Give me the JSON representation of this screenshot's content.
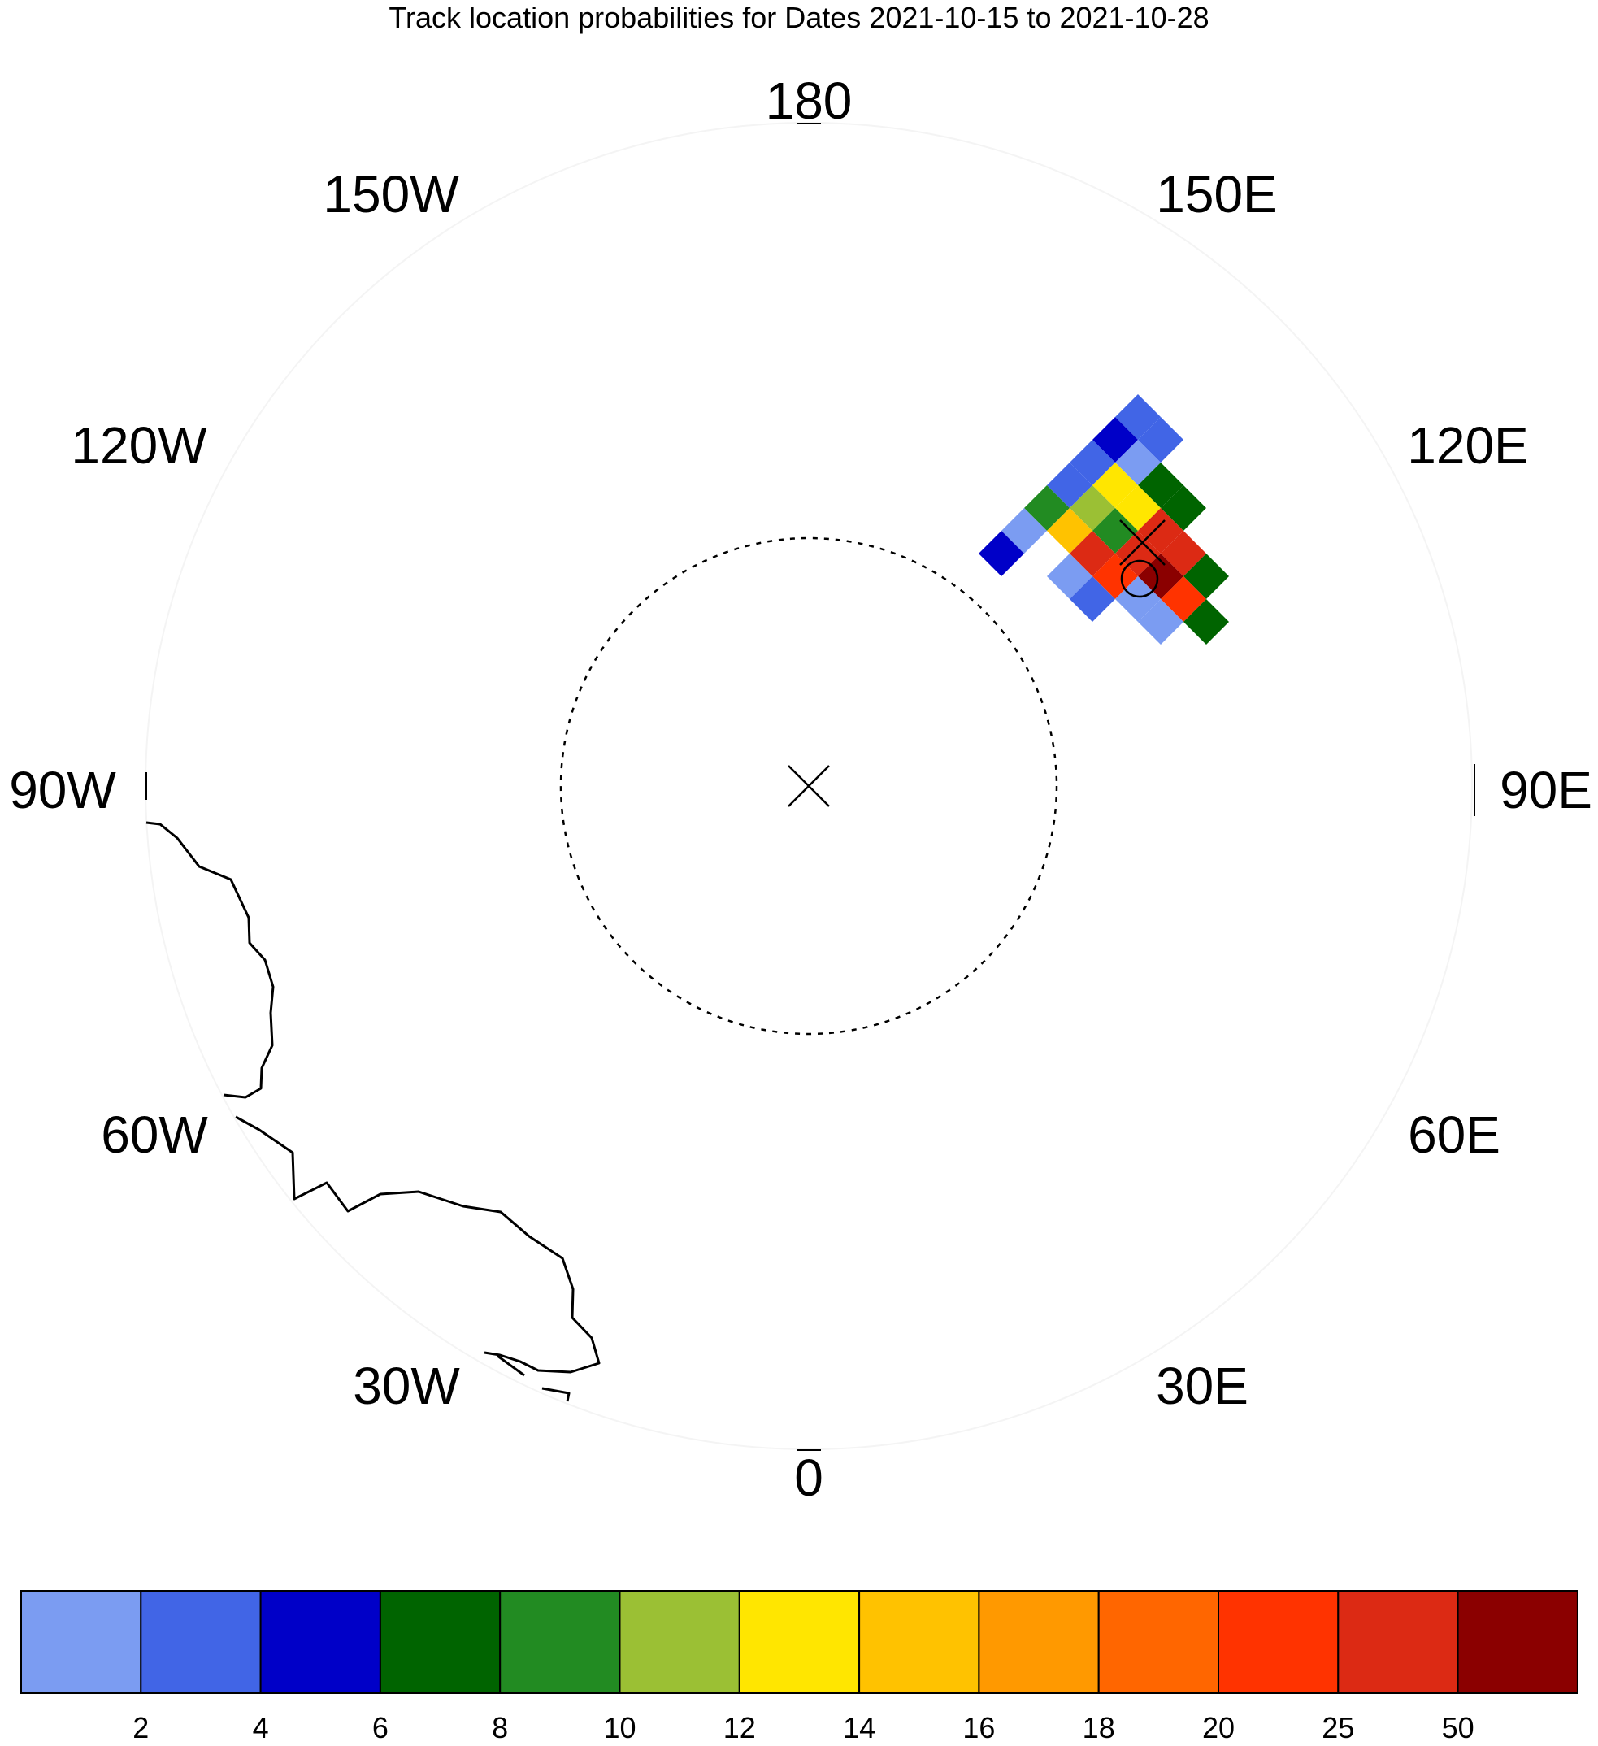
{
  "title": "Track location probabilities for Dates 2021-10-15 to 2021-10-28",
  "longitude_labels": [
    "180",
    "150E",
    "120E",
    "90E",
    "60E",
    "30E",
    "0",
    "30W",
    "60W",
    "90W",
    "120W",
    "150W"
  ],
  "pole_marker": "x-mark-icon",
  "storm_markers": [
    "x-mark-icon",
    "circle-icon"
  ],
  "colorbar": {
    "colors": [
      "#7b9cf2",
      "#4165e6",
      "#0000c8",
      "#006400",
      "#228b22",
      "#9bc034",
      "#ffe600",
      "#ffc200",
      "#ff9900",
      "#ff6600",
      "#ff3300",
      "#dc2a14",
      "#8b0000"
    ],
    "labels": [
      "2",
      "4",
      "6",
      "8",
      "10",
      "12",
      "14",
      "16",
      "18",
      "20",
      "25",
      "50"
    ]
  },
  "probability_cells": [
    {
      "gx": 0,
      "gy": 0,
      "color": "#4165e6"
    },
    {
      "gx": 1,
      "gy": 0,
      "color": "#4165e6"
    },
    {
      "gx": 0,
      "gy": 1,
      "color": "#0000c8"
    },
    {
      "gx": 1,
      "gy": 1,
      "color": "#7b9cf2"
    },
    {
      "gx": 2,
      "gy": 1,
      "color": "#006400"
    },
    {
      "gx": 3,
      "gy": 1,
      "color": "#006400"
    },
    {
      "gx": 0,
      "gy": 2,
      "color": "#4165e6"
    },
    {
      "gx": 1,
      "gy": 2,
      "color": "#ffe600"
    },
    {
      "gx": 2,
      "gy": 2,
      "color": "#ffe600"
    },
    {
      "gx": 3,
      "gy": 2,
      "color": "#dc2a14"
    },
    {
      "gx": 4,
      "gy": 2,
      "color": "#dc2a14"
    },
    {
      "gx": 5,
      "gy": 2,
      "color": "#006400"
    },
    {
      "gx": 0,
      "gy": 3,
      "color": "#4165e6"
    },
    {
      "gx": 1,
      "gy": 3,
      "color": "#9bc034"
    },
    {
      "gx": 2,
      "gy": 3,
      "color": "#228b22"
    },
    {
      "gx": 3,
      "gy": 3,
      "color": "#dc2a14"
    },
    {
      "gx": 4,
      "gy": 3,
      "color": "#8b0000"
    },
    {
      "gx": 5,
      "gy": 3,
      "color": "#ff3300"
    },
    {
      "gx": 6,
      "gy": 3,
      "color": "#006400"
    },
    {
      "gx": 0,
      "gy": 4,
      "color": "#228b22"
    },
    {
      "gx": 1,
      "gy": 4,
      "color": "#ffc200"
    },
    {
      "gx": 2,
      "gy": 4,
      "color": "#dc2a14"
    },
    {
      "gx": 3,
      "gy": 4,
      "color": "#ff3300"
    },
    {
      "gx": 4,
      "gy": 4,
      "color": "#7b9cf2"
    },
    {
      "gx": 5,
      "gy": 4,
      "color": "#7b9cf2"
    },
    {
      "gx": 0,
      "gy": 5,
      "color": "#7b9cf2"
    },
    {
      "gx": 2,
      "gy": 5,
      "color": "#7b9cf2"
    },
    {
      "gx": 3,
      "gy": 5,
      "color": "#4165e6"
    },
    {
      "gx": 0,
      "gy": 6,
      "color": "#0000c8"
    }
  ]
}
